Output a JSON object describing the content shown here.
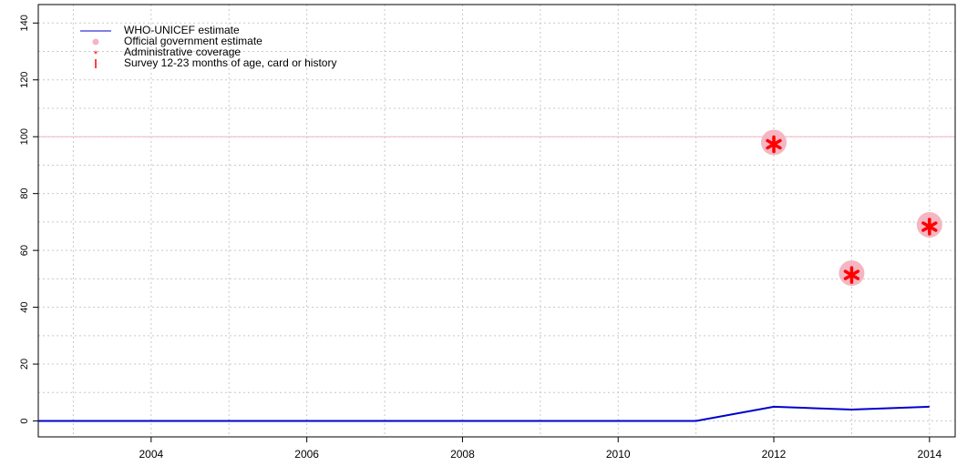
{
  "chart_data": {
    "type": "line",
    "x": [
      2002,
      2003,
      2004,
      2005,
      2006,
      2007,
      2008,
      2009,
      2010,
      2011,
      2012,
      2013,
      2014
    ],
    "series": [
      {
        "name": "WHO-UNICEF estimate",
        "color": "#0000cc",
        "kind": "line",
        "x": [
          2002,
          2003,
          2004,
          2005,
          2006,
          2007,
          2008,
          2009,
          2010,
          2011,
          2012,
          2013,
          2014
        ],
        "values": [
          0,
          0,
          0,
          0,
          0,
          0,
          0,
          0,
          0,
          0,
          5,
          4,
          5
        ]
      },
      {
        "name": "Official government estimate",
        "color": "#f4b6c2",
        "kind": "circle",
        "x": [
          2012,
          2013,
          2014
        ],
        "values": [
          98,
          52,
          69
        ]
      },
      {
        "name": "Administrative coverage",
        "color": "#ff0000",
        "kind": "star",
        "x": [
          2012,
          2013,
          2014
        ],
        "values": [
          98,
          52,
          69
        ]
      },
      {
        "name": "Survey 12-23 months of age, card or history",
        "color": "#ff0000",
        "kind": "bar",
        "x": [],
        "values": []
      }
    ],
    "reference_line": {
      "value": 100,
      "color": "#f4b6c2"
    },
    "xlim": [
      2002.55,
      2014.33
    ],
    "xticks": [
      2004,
      2006,
      2008,
      2010,
      2012,
      2014
    ],
    "xgrid": [
      2003,
      2004,
      2005,
      2006,
      2007,
      2008,
      2009,
      2010,
      2011,
      2012,
      2013,
      2014
    ],
    "ylim": [
      -5.6,
      146.5
    ],
    "yticks": [
      0,
      20,
      40,
      60,
      80,
      100,
      120,
      140
    ],
    "ygrid": [
      0,
      10,
      20,
      30,
      40,
      50,
      60,
      70,
      80,
      90,
      100,
      110,
      120,
      130,
      140
    ],
    "grid": true,
    "legend": "top-left"
  }
}
